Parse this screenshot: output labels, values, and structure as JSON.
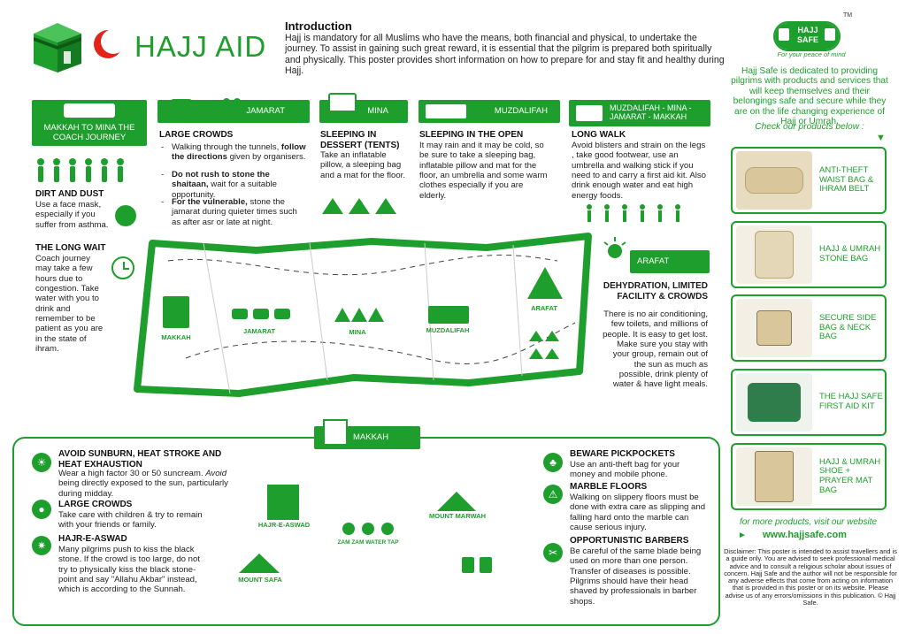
{
  "brand": {
    "title": "HAJJ AID"
  },
  "intro": {
    "heading": "Introduction",
    "body": "Hajj is mandatory for all Muslims who have the means, both financial and physical, to undertake the journey. To assist in gaining such great reward, it is essential that the pilgrim is prepared both spiritually and physically. This poster provides short information on how to prepare for and stay fit and healthy during Hajj."
  },
  "hajjsafe": {
    "logo_line1": "HAJJ",
    "logo_line2": "SAFE",
    "tm": "TM",
    "tagline": "For your peace of mind",
    "desc": "Hajj Safe is dedicated to providing pilgrims with products and services that will keep themselves and their belongings safe and secure while they are on the life changing experience of Hajj or Umrah.",
    "check": "Check our products below :",
    "products": [
      {
        "label": "ANTI-THEFT WAIST BAG & IHRAM BELT"
      },
      {
        "label": "HAJJ & UMRAH STONE BAG"
      },
      {
        "label": "SECURE SIDE BAG & NECK BAG"
      },
      {
        "label": "THE HAJJ SAFE FIRST AID KIT"
      },
      {
        "label": "HAJJ & UMRAH SHOE + PRAYER MAT BAG"
      }
    ],
    "more": "for more products, visit our website",
    "url": "www.hajjsafe.com",
    "bullet": "►",
    "disclaimer": "Disclaimer: This poster is intended to assist travellers and is a guide only. You are advised to seek professional medical advice and to consult a religious scholar about issues of concern. Hajj Safe and the author will not be responsible for any adverse effects that come from acting on information that is provided in this poster or on its website. Please advise us of any errors/omissions in this publication. © Hajj Safe."
  },
  "stages": {
    "makkah_mina": {
      "header": "MAKKAH TO MINA THE COACH JOURNEY",
      "dust_title": "DIRT AND DUST",
      "dust_body": "Use a face mask, especially if you suffer from asthma.",
      "wait_title": "THE LONG WAIT",
      "wait_body": "Coach journey may take a few hours due to congestion. Take water with you to drink and remember to be patient as you are in the state of ihram."
    },
    "jamarat": {
      "header": "JAMARAT",
      "title": "LARGE CROWDS",
      "b1_pre": "Walking through the tunnels, ",
      "b1_bold": "follow the directions",
      "b1_post": " given by organisers.",
      "b2_bold": "Do not rush to stone the shaitaan,",
      "b2_post": " wait for a suitable opportunity.",
      "b3_bold": "For the vulnerable,",
      "b3_post": " stone the jamarat during quieter times such as after asr or late at night.",
      "dash": "-"
    },
    "mina": {
      "header": "MINA",
      "title": "SLEEPING IN DESSERT (TENTS)",
      "body": "Take an inflatable pillow, a sleeping bag and a mat for the floor."
    },
    "muzdalifah": {
      "header": "MUZDALIFAH",
      "title": "SLEEPING IN THE OPEN",
      "body": "It may rain and it may be cold, so be sure to take a sleeping bag, inflatable pillow and mat for the floor, an umbrella and some warm clothes especially if you are elderly."
    },
    "muz_mina_makkah": {
      "header": "MUZDALIFAH - MINA - JAMARAT - MAKKAH",
      "title": "LONG WALK",
      "body": "Avoid blisters and strain on the legs , take good footwear, use an umbrella and walking stick if you need to and carry a first aid kit. Also drink enough water and eat high energy foods."
    },
    "arafat": {
      "header": "ARAFAT",
      "title": "DEHYDRATION, LIMITED FACILITY & CROWDS",
      "body": "There is no air conditioning, few toilets, and millions of people. It is easy to get lost. Make sure you stay with your group, remain out of the sun as much as possible, drink plenty of water & have light meals."
    }
  },
  "map_labels": {
    "makkah": "MAKKAH",
    "jamarat": "JAMARAT",
    "mina": "MINA",
    "muzdalifah": "MUZDALIFAH",
    "arafat": "ARAFAT",
    "hajr": "HAJR-E-ASWAD",
    "zamzam": "ZAM ZAM WATER TAP",
    "marwah": "MOUNT MARWAH",
    "safa": "MOUNT SAFA"
  },
  "makkah_section": {
    "header": "MAKKAH",
    "sunburn_title": "AVOID SUNBURN, HEAT STROKE AND HEAT EXHAUSTION",
    "sunburn_body1": "Wear a high factor 30 or 50 suncream. ",
    "sunburn_italic": "Avoid",
    "sunburn_body2": " being directly exposed to the sun, particularly during midday.",
    "crowds_title": "LARGE CROWDS",
    "crowds_body": "Take care with children & try to remain with your friends or family.",
    "hajr_title": "HAJR-E-ASWAD",
    "hajr_body": "Many pilgrims push to kiss the black stone. If the crowd is too large, do not try to physically kiss the black stone- point and say \"Allahu Akbar\" instead, which is according to the Sunnah.",
    "pick_title": "BEWARE PICKPOCKETS",
    "pick_body": "Use an anti-theft bag for your money and mobile phone.",
    "marble_title": "MARBLE FLOORS",
    "marble_body": "Walking on slippery floors must be done with extra care as slipping and falling hard onto the marble can cause serious injury.",
    "barber_title": "OPPORTUNISTIC BARBERS",
    "barber_body": "Be careful of the same blade being used on more than one person. Transfer of diseases is possible. Pilgrims should have their head shaved by professionals in barber shops."
  },
  "colors": {
    "green": "#1e9e2c",
    "red": "#e2231a"
  }
}
